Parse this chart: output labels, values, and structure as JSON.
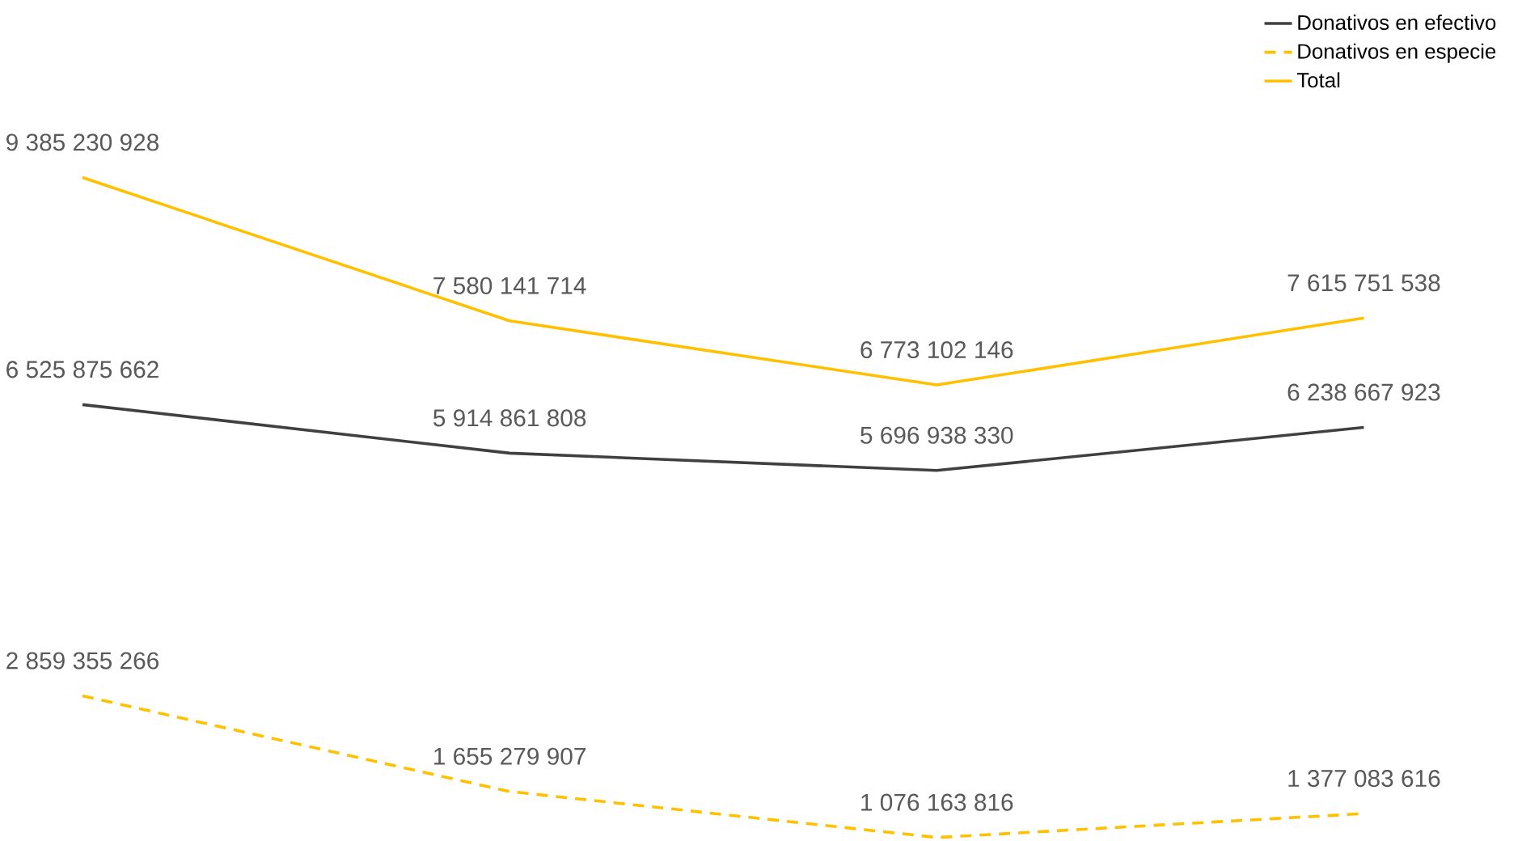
{
  "chart_data": {
    "type": "line",
    "categories": [
      null,
      null,
      null,
      null
    ],
    "legend": "top right",
    "series": [
      {
        "name": "Donativos en efectivo",
        "color": "#404040",
        "line_style": "solid",
        "values": [
          6525875662,
          5914861808,
          5696938330,
          6238667923
        ],
        "value_labels": [
          "6 525 875 662",
          "5 914 861 808",
          "5 696 938 330",
          "6 238 667 923"
        ]
      },
      {
        "name": "Donativos en especie",
        "color": "#ffc000",
        "line_style": "dashed",
        "values": [
          2859355266,
          1655279907,
          1076163816,
          1377083616
        ],
        "value_labels": [
          "2 859 355 266",
          "1 655 279 907",
          "1 076 163 816",
          "1 377 083 616"
        ]
      },
      {
        "name": "Total",
        "color": "#ffc000",
        "line_style": "solid",
        "values": [
          9385230928,
          7580141714,
          6773102146,
          7615751538
        ],
        "value_labels": [
          "9 385 230 928",
          "7 580 141 714",
          "6 773 102 146",
          "7 615 751 538"
        ]
      }
    ]
  }
}
